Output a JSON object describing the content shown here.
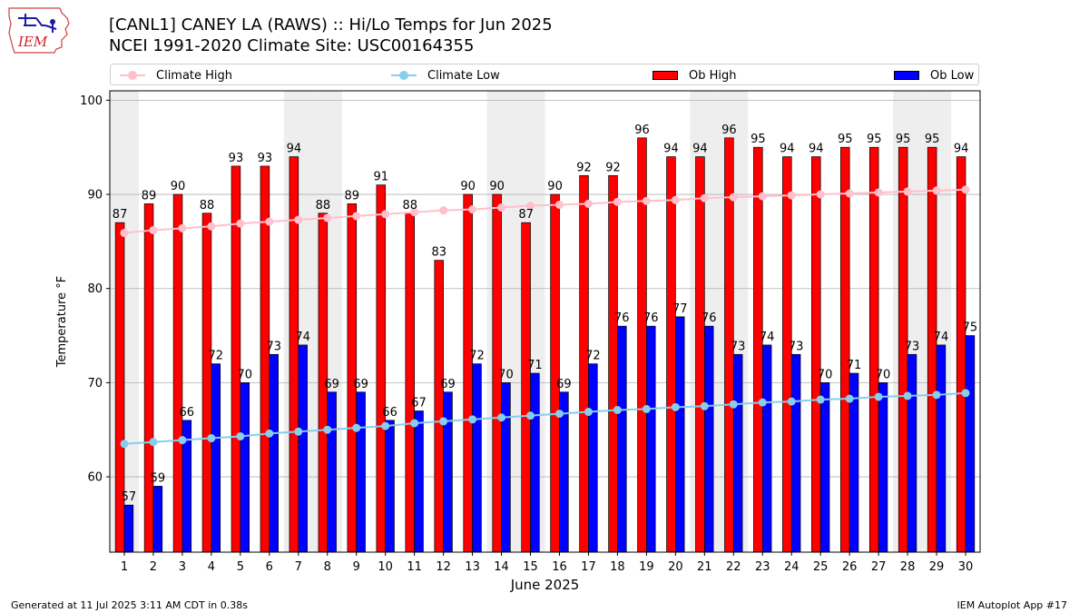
{
  "logo": {
    "text": "IEM"
  },
  "header": {
    "title_line1": "[CANL1] CANEY  LA  (RAWS) :: Hi/Lo Temps for Jun 2025",
    "title_line2": "NCEI 1991-2020 Climate Site: USC00164355"
  },
  "legend": {
    "climate_high": "Climate High",
    "climate_low": "Climate Low",
    "ob_high": "Ob High",
    "ob_low": "Ob Low"
  },
  "colors": {
    "climate_high": "#ffc0cb",
    "climate_low": "#87ceeb",
    "ob_high": "#ff0000",
    "ob_low": "#0000ff",
    "weekend_shade": "#eeeeee",
    "grid": "#b0b0b0"
  },
  "footer": {
    "generated": "Generated at 11 Jul 2025 3:11 AM CDT in 0.38s",
    "app": "IEM Autoplot App #17"
  },
  "chart_data": {
    "type": "bar",
    "xlabel": "June 2025",
    "ylabel": "Temperature °F",
    "ylim": [
      52,
      101
    ],
    "yticks": [
      60,
      70,
      80,
      90,
      100
    ],
    "grid": true,
    "legend_position": "top",
    "categories": [
      "1",
      "2",
      "3",
      "4",
      "5",
      "6",
      "7",
      "8",
      "9",
      "10",
      "11",
      "12",
      "13",
      "14",
      "15",
      "16",
      "17",
      "18",
      "19",
      "20",
      "21",
      "22",
      "23",
      "24",
      "25",
      "26",
      "27",
      "28",
      "29",
      "30"
    ],
    "shaded_days": [
      1,
      7,
      8,
      14,
      15,
      21,
      22,
      28,
      29
    ],
    "series": [
      {
        "name": "Ob High",
        "kind": "bar",
        "values": [
          87,
          89,
          90,
          88,
          93,
          93,
          94,
          88,
          89,
          91,
          88,
          83,
          90,
          90,
          87,
          90,
          92,
          92,
          96,
          94,
          94,
          96,
          95,
          94,
          94,
          95,
          95,
          95,
          95,
          94
        ]
      },
      {
        "name": "Ob Low",
        "kind": "bar",
        "values": [
          57,
          59,
          66,
          72,
          70,
          73,
          74,
          69,
          69,
          66,
          67,
          69,
          72,
          70,
          71,
          69,
          72,
          76,
          76,
          77,
          76,
          73,
          74,
          73,
          70,
          71,
          70,
          73,
          74,
          75
        ]
      },
      {
        "name": "Climate High",
        "kind": "line",
        "values": [
          85.9,
          86.2,
          86.4,
          86.6,
          86.9,
          87.1,
          87.3,
          87.5,
          87.7,
          87.9,
          88.1,
          88.3,
          88.4,
          88.6,
          88.8,
          88.9,
          89.0,
          89.2,
          89.3,
          89.4,
          89.6,
          89.7,
          89.8,
          89.9,
          90.0,
          90.1,
          90.2,
          90.3,
          90.4,
          90.5
        ]
      },
      {
        "name": "Climate Low",
        "kind": "line",
        "values": [
          63.5,
          63.7,
          63.9,
          64.1,
          64.3,
          64.6,
          64.8,
          65.0,
          65.2,
          65.4,
          65.7,
          65.9,
          66.1,
          66.3,
          66.5,
          66.7,
          66.9,
          67.1,
          67.2,
          67.4,
          67.5,
          67.7,
          67.9,
          68.0,
          68.2,
          68.3,
          68.5,
          68.6,
          68.7,
          68.9
        ]
      }
    ]
  }
}
